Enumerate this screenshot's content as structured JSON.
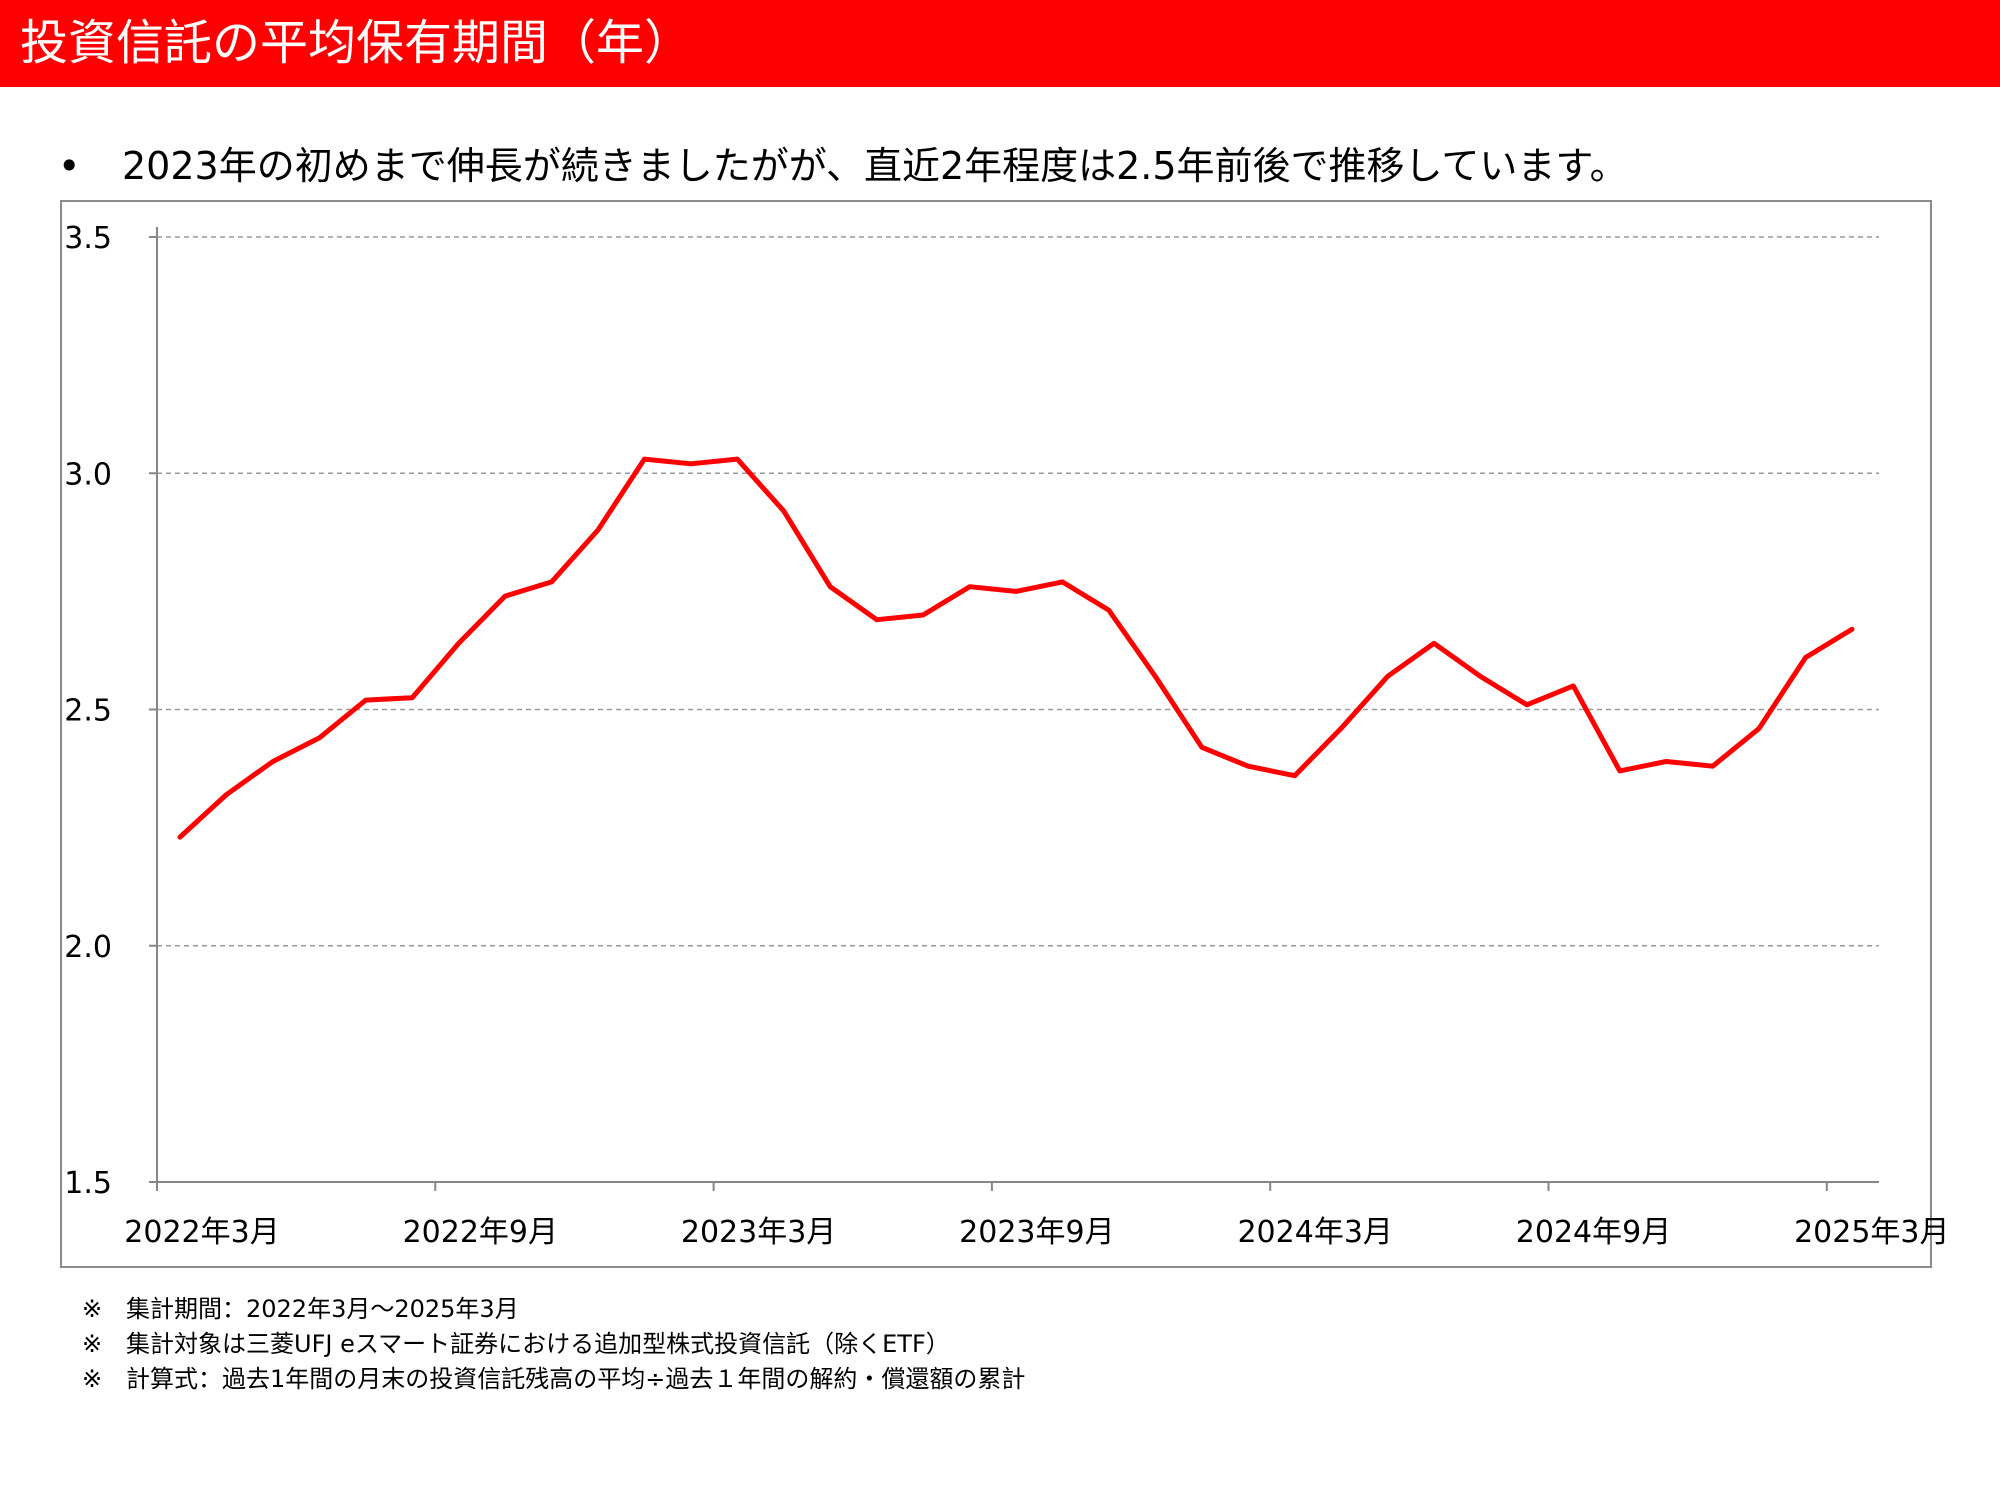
{
  "header": {
    "title": "投資信託の平均保有期間（年）",
    "accent_color": "#ff0000"
  },
  "bullet": {
    "marker": "•",
    "text": "2023年の初めまで伸長が続きましたがが、直近2年程度は2.5年前後で推移しています。"
  },
  "chart_data": {
    "type": "line",
    "title": "",
    "xlabel": "",
    "ylabel": "",
    "ylim": [
      1.5,
      3.5
    ],
    "yticks": [
      "1.5",
      "2.0",
      "2.5",
      "3.0",
      "3.5"
    ],
    "xtick_labels": [
      "2022年3月",
      "2022年9月",
      "2023年3月",
      "2023年9月",
      "2024年3月",
      "2024年9月",
      "2025年3月"
    ],
    "grid": "horizontal dashed",
    "legend": "none",
    "line_color": "#ff0000",
    "x": [
      "2022-03",
      "2022-04",
      "2022-05",
      "2022-06",
      "2022-07",
      "2022-08",
      "2022-09",
      "2022-10",
      "2022-11",
      "2022-12",
      "2023-01",
      "2023-02",
      "2023-03",
      "2023-04",
      "2023-05",
      "2023-06",
      "2023-07",
      "2023-08",
      "2023-09",
      "2023-10",
      "2023-11",
      "2023-12",
      "2024-01",
      "2024-02",
      "2024-03",
      "2024-04",
      "2024-05",
      "2024-06",
      "2024-07",
      "2024-08",
      "2024-09",
      "2024-10",
      "2024-11",
      "2024-12",
      "2025-01",
      "2025-02",
      "2025-03"
    ],
    "series": [
      {
        "values": [
          2.23,
          2.32,
          2.39,
          2.44,
          2.52,
          2.525,
          2.64,
          2.74,
          2.77,
          2.88,
          3.03,
          3.02,
          3.03,
          2.92,
          2.76,
          2.69,
          2.7,
          2.76,
          2.75,
          2.77,
          2.71,
          2.57,
          2.42,
          2.38,
          2.36,
          2.46,
          2.57,
          2.64,
          2.57,
          2.51,
          2.55,
          2.37,
          2.39,
          2.38,
          2.46,
          2.61,
          2.67
        ]
      }
    ]
  },
  "notes": [
    {
      "mark": "※",
      "text": "集計期間：2022年3月～2025年3月"
    },
    {
      "mark": "※",
      "text": "集計対象は三菱UFJ eスマート証券における追加型株式投資信託（除くETF）"
    },
    {
      "mark": "※",
      "text": "計算式：過去1年間の月末の投資信託残高の平均÷過去１年間の解約・償還額の累計"
    }
  ]
}
